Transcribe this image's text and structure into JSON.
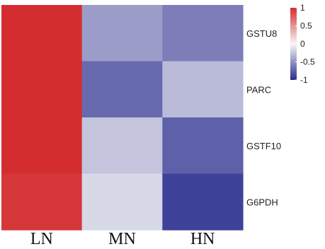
{
  "chart_data": {
    "type": "heatmap",
    "columns": [
      "LN",
      "MN",
      "HN"
    ],
    "rows": [
      "GSTU8",
      "PARC",
      "GSTF10",
      "G6PDH"
    ],
    "values": [
      [
        1.0,
        -0.45,
        -0.6
      ],
      [
        1.0,
        -0.7,
        -0.3
      ],
      [
        1.0,
        -0.25,
        -0.75
      ],
      [
        0.95,
        -0.15,
        -0.9
      ]
    ],
    "color_scale": {
      "min": -1,
      "max": 1,
      "low_color": "#2B2E8F",
      "mid_color": "#F7F7F7",
      "high_color": "#D42D2F"
    },
    "legend": {
      "ticks": [
        1,
        0.5,
        0,
        -0.5,
        -1
      ],
      "tick_labels": [
        "1",
        "0.5",
        "0",
        "-0.5",
        "-1"
      ],
      "placement": "top-right"
    }
  }
}
